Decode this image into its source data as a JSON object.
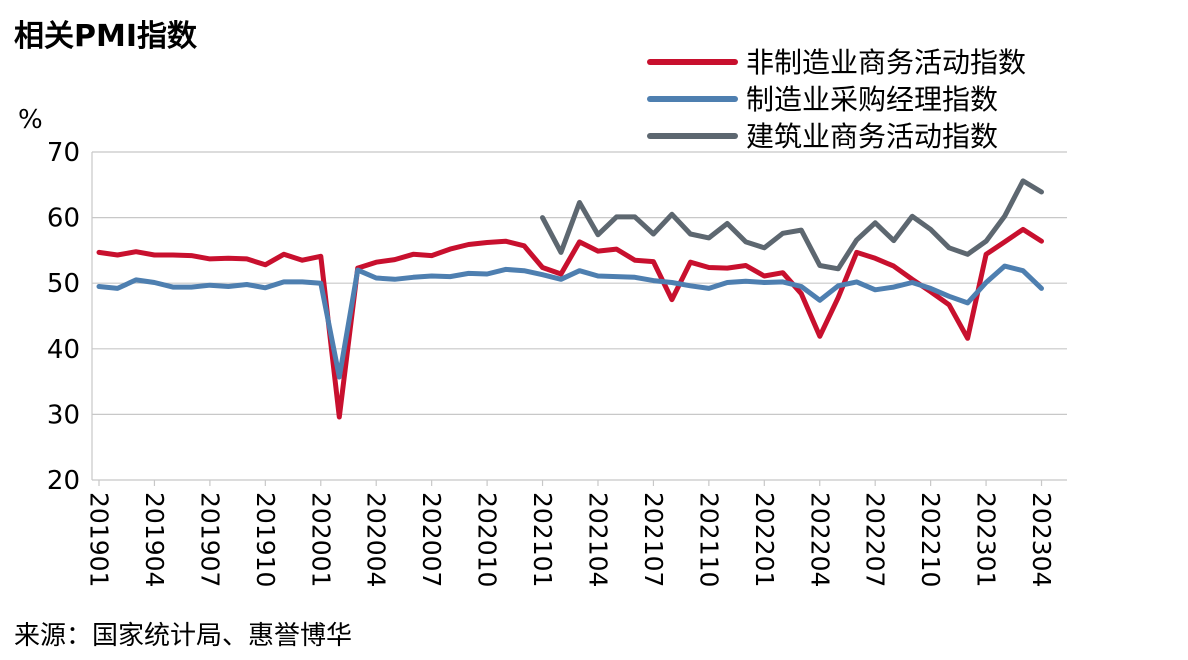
{
  "title": "相关PMI指数",
  "source": "来源：国家统计局、惠誉博华",
  "chart_data": {
    "type": "line",
    "title": "相关PMI指数",
    "ylabel": "%",
    "ylim": [
      20,
      70
    ],
    "yticks": [
      20,
      30,
      40,
      50,
      60,
      70
    ],
    "grid": "horizontal",
    "legend_position": "top-right",
    "x": [
      "201901",
      "201902",
      "201903",
      "201904",
      "201905",
      "201906",
      "201907",
      "201908",
      "201909",
      "201910",
      "201911",
      "201912",
      "202001",
      "202002",
      "202003",
      "202004",
      "202005",
      "202006",
      "202007",
      "202008",
      "202009",
      "202010",
      "202011",
      "202012",
      "202101",
      "202102",
      "202103",
      "202104",
      "202105",
      "202106",
      "202107",
      "202108",
      "202109",
      "202110",
      "202111",
      "202112",
      "202201",
      "202202",
      "202203",
      "202204",
      "202205",
      "202206",
      "202207",
      "202208",
      "202209",
      "202210",
      "202211",
      "202212",
      "202301",
      "202302",
      "202303",
      "202304",
      "202305"
    ],
    "xticks": [
      "201901",
      "201904",
      "201907",
      "201910",
      "202001",
      "202004",
      "202007",
      "202010",
      "202101",
      "202104",
      "202107",
      "202110",
      "202201",
      "202204",
      "202207",
      "202210",
      "202301",
      "202304"
    ],
    "series": [
      {
        "name": "非制造业商务活动指数",
        "color": "#c8102e",
        "values": [
          54.7,
          54.3,
          54.8,
          54.3,
          54.3,
          54.2,
          53.7,
          53.8,
          53.7,
          52.8,
          54.4,
          53.5,
          54.1,
          29.6,
          52.3,
          53.2,
          53.6,
          54.4,
          54.2,
          55.2,
          55.9,
          56.2,
          56.4,
          55.7,
          52.4,
          51.4,
          56.3,
          54.9,
          55.2,
          53.5,
          53.3,
          47.5,
          53.2,
          52.4,
          52.3,
          52.7,
          51.1,
          51.6,
          48.4,
          41.9,
          47.8,
          54.7,
          53.8,
          52.6,
          50.6,
          48.7,
          46.7,
          41.6,
          54.4,
          56.3,
          58.2,
          56.4,
          null
        ]
      },
      {
        "name": "制造业采购经理指数",
        "color": "#4e7fb0",
        "values": [
          49.5,
          49.2,
          50.5,
          50.1,
          49.4,
          49.4,
          49.7,
          49.5,
          49.8,
          49.3,
          50.2,
          50.2,
          50.0,
          35.7,
          52.0,
          50.8,
          50.6,
          50.9,
          51.1,
          51.0,
          51.5,
          51.4,
          52.1,
          51.9,
          51.3,
          50.6,
          51.9,
          51.1,
          51.0,
          50.9,
          50.4,
          50.1,
          49.6,
          49.2,
          50.1,
          50.3,
          50.1,
          50.2,
          49.5,
          47.4,
          49.6,
          50.2,
          49.0,
          49.4,
          50.1,
          49.2,
          48.0,
          47.0,
          50.1,
          52.6,
          51.9,
          49.2,
          null
        ]
      },
      {
        "name": "建筑业商务活动指数",
        "color": "#5d6770",
        "values": [
          null,
          null,
          null,
          null,
          null,
          null,
          null,
          null,
          null,
          null,
          null,
          null,
          null,
          null,
          null,
          null,
          null,
          null,
          null,
          null,
          null,
          null,
          null,
          null,
          60.0,
          54.7,
          62.3,
          57.4,
          60.1,
          60.1,
          57.5,
          60.5,
          57.5,
          56.9,
          59.1,
          56.3,
          55.4,
          57.6,
          58.1,
          52.7,
          52.2,
          56.6,
          59.2,
          56.5,
          60.2,
          58.2,
          55.4,
          54.4,
          56.4,
          60.2,
          65.6,
          63.9,
          null
        ]
      }
    ]
  }
}
